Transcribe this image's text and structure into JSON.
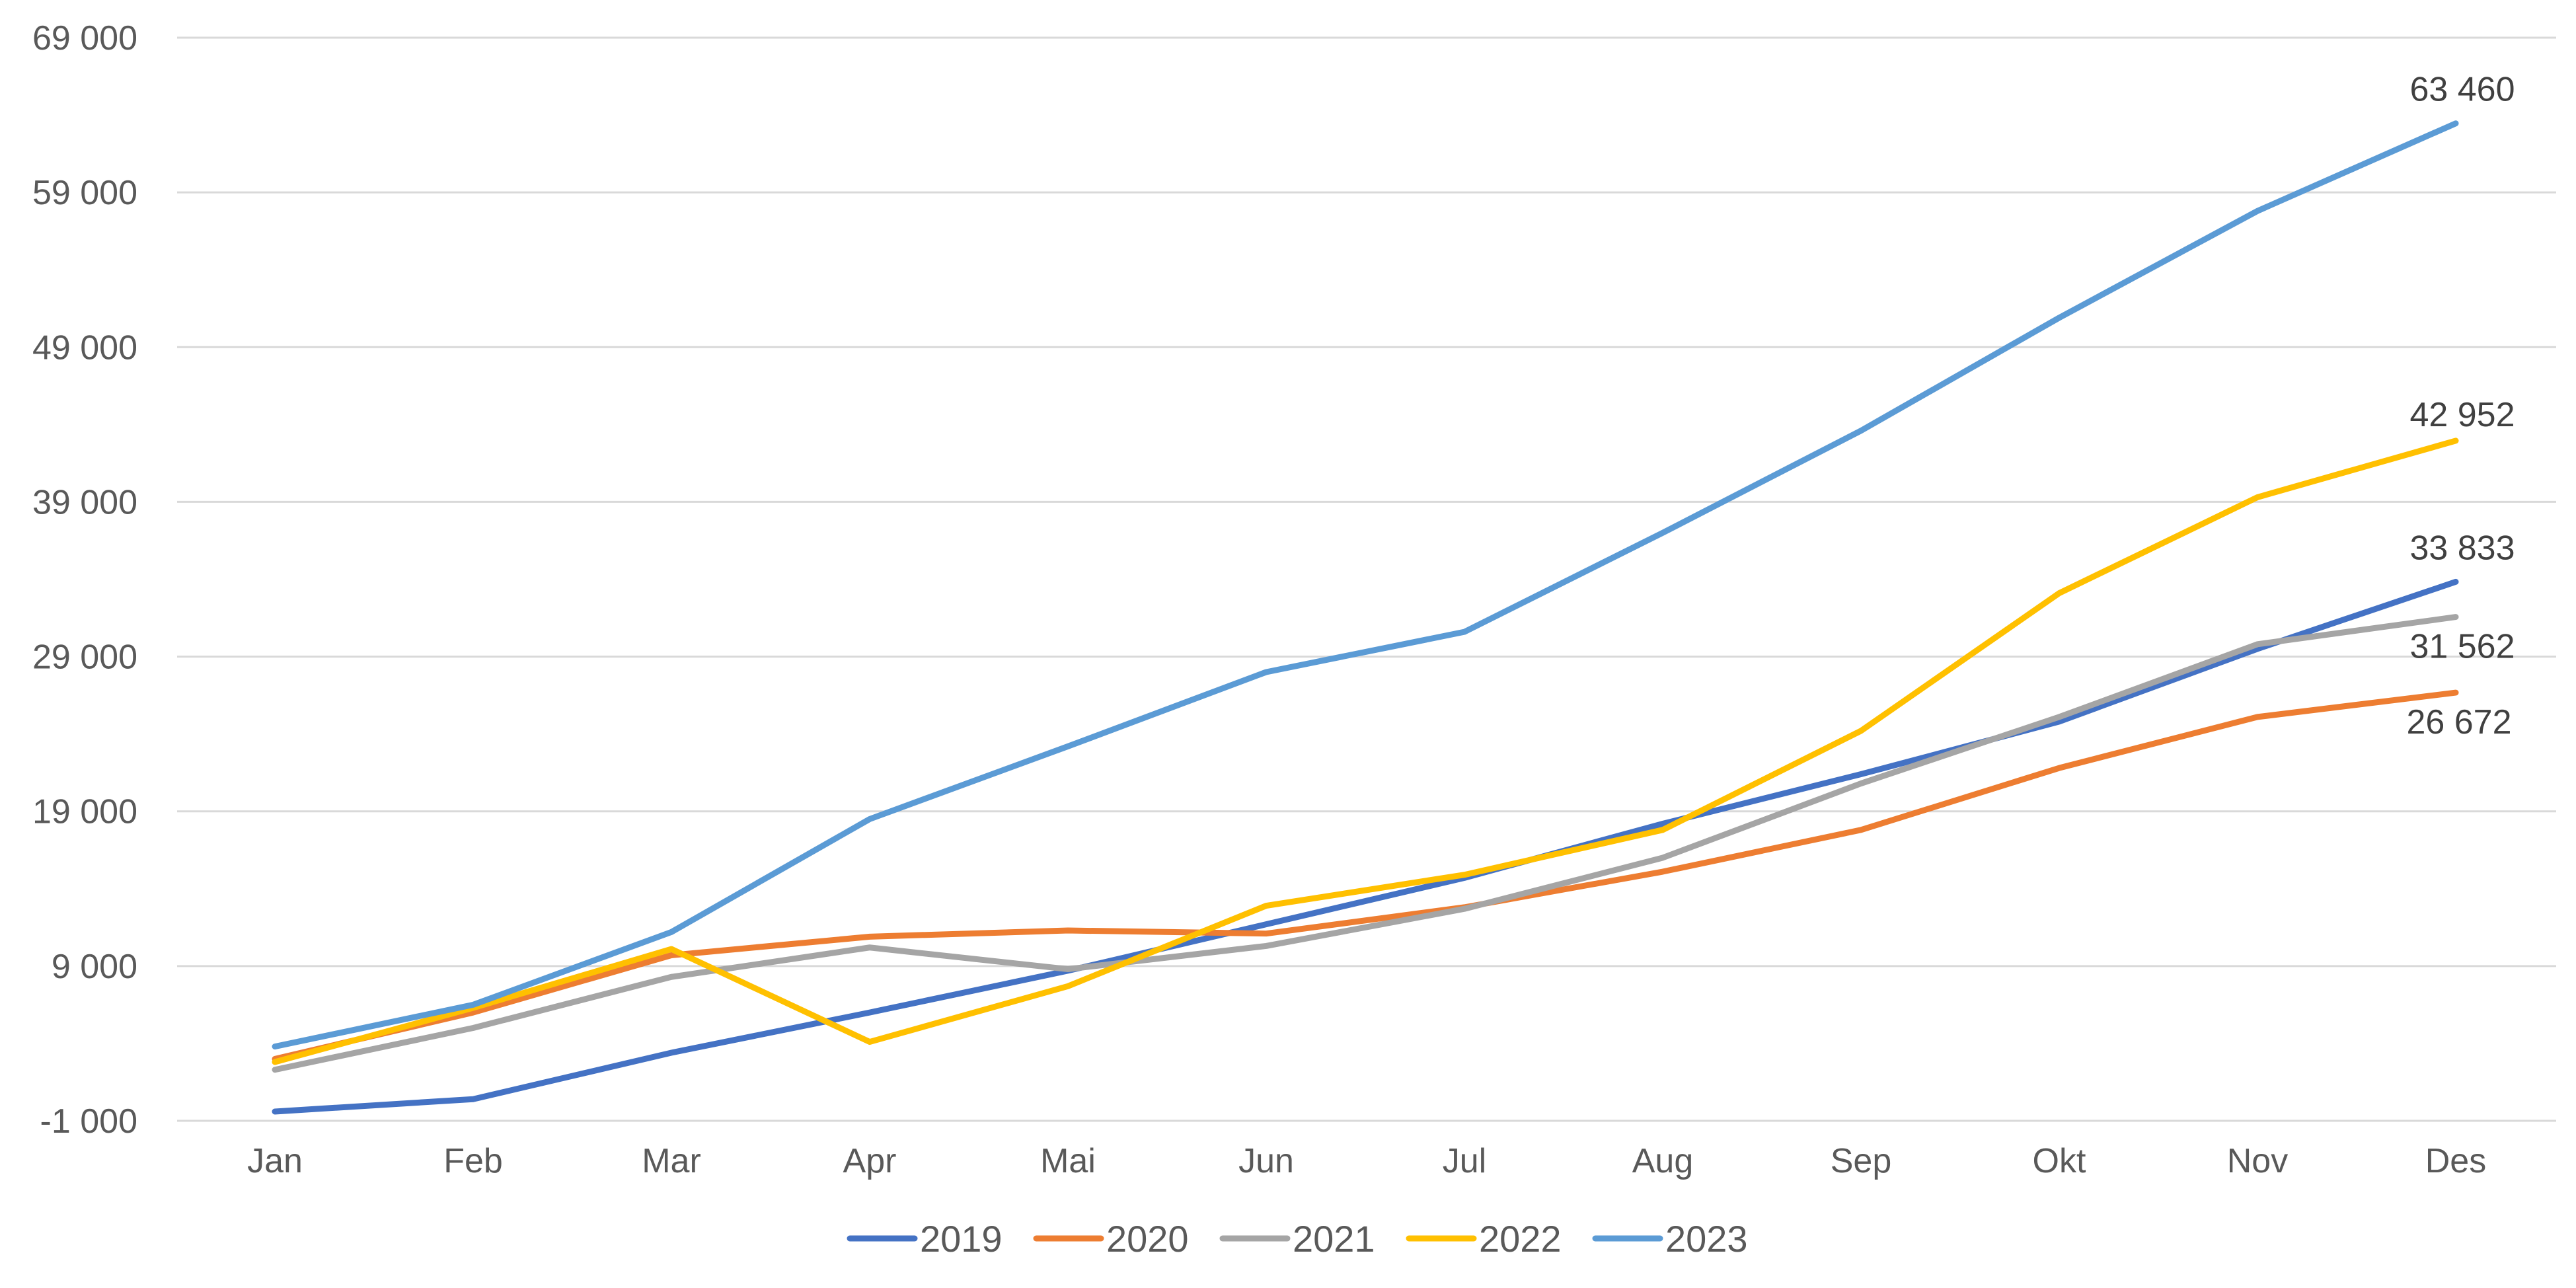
{
  "chart_data": {
    "type": "line",
    "title": "",
    "xlabel": "",
    "ylabel": "",
    "categories": [
      "Jan",
      "Feb",
      "Mar",
      "Apr",
      "Mai",
      "Jun",
      "Jul",
      "Aug",
      "Sep",
      "Okt",
      "Nov",
      "Des"
    ],
    "ylim": [
      -1000,
      69000
    ],
    "yticks": [
      -1000,
      9000,
      19000,
      29000,
      39000,
      49000,
      59000,
      69000
    ],
    "ytick_labels": [
      "-1 000",
      "9 000",
      "19 000",
      "29 000",
      "39 000",
      "49 000",
      "59 000",
      "69 000"
    ],
    "grid": true,
    "legend_position": "bottom",
    "series": [
      {
        "name": "2019",
        "color": "#4472c4",
        "values": [
          -400,
          400,
          3400,
          6000,
          8700,
          11700,
          14700,
          18200,
          21400,
          24800,
          29500,
          33833
        ],
        "end_label": "33 833"
      },
      {
        "name": "2020",
        "color": "#ed7d31",
        "values": [
          3000,
          6000,
          9700,
          10900,
          11300,
          11100,
          12800,
          15100,
          17800,
          21800,
          25100,
          26672
        ],
        "end_label": "26 672"
      },
      {
        "name": "2021",
        "color": "#a5a5a5",
        "values": [
          2300,
          5000,
          8300,
          10200,
          8800,
          10300,
          12700,
          16000,
          20800,
          25100,
          29800,
          31562
        ],
        "end_label": "31 562"
      },
      {
        "name": "2022",
        "color": "#ffc000",
        "values": [
          2800,
          6300,
          10100,
          4100,
          7700,
          12900,
          14900,
          17800,
          24200,
          33100,
          39300,
          42952
        ],
        "end_label": "42 952"
      },
      {
        "name": "2023",
        "color": "#5b9bd5",
        "values": [
          3800,
          6500,
          11200,
          18500,
          23200,
          28000,
          30600,
          37000,
          43600,
          50900,
          57800,
          63460
        ],
        "end_label": "63 460"
      }
    ]
  }
}
